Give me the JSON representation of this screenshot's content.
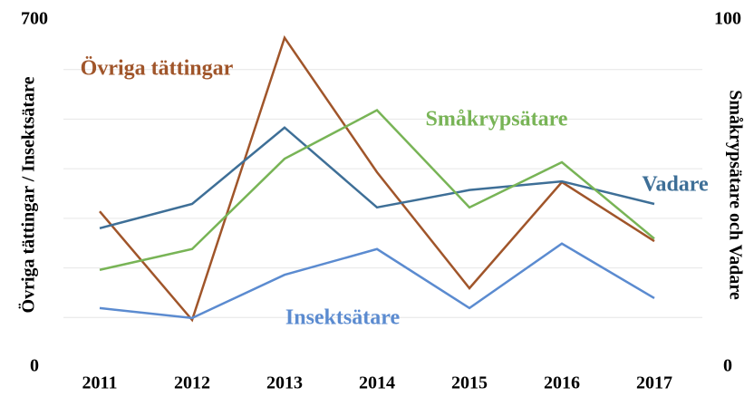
{
  "chart_data": {
    "type": "line",
    "x": [
      "2011",
      "2012",
      "2013",
      "2014",
      "2015",
      "2016",
      "2017"
    ],
    "ylabel": "Övriga tättingar / Insektsätare",
    "y2label": "Småkrypsätare och Vadare",
    "ylim": [
      0,
      700
    ],
    "yticks": [
      0,
      700
    ],
    "ygrid": [
      100,
      200,
      300,
      400,
      500,
      600
    ],
    "y2lim": [
      0,
      100
    ],
    "y2ticks": [
      0,
      100
    ],
    "series": [
      {
        "name": "Övriga tättingar",
        "color": "#a0552a",
        "values": [
          314,
          95,
          664,
          393,
          159,
          373,
          254
        ]
      },
      {
        "name": "Insektsätare",
        "color": "#5b8bd0",
        "values": [
          119,
          99,
          186,
          238,
          119,
          249,
          139
        ]
      },
      {
        "name": "Vadare",
        "color": "#3e6f97",
        "axis": "y2",
        "values": [
          40,
          47,
          69,
          46,
          51,
          53.5,
          47
        ]
      },
      {
        "name": "Småkrypsätare",
        "color": "#78b456",
        "axis": "y2",
        "values": [
          28,
          34,
          60,
          74,
          46,
          59,
          37
        ]
      }
    ]
  }
}
